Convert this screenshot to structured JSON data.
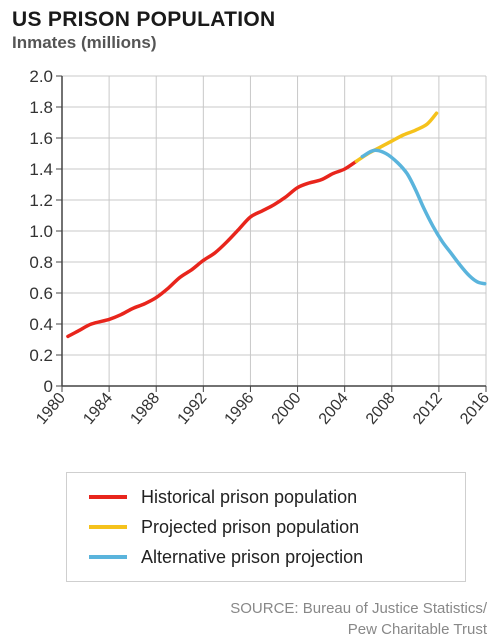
{
  "header": {
    "title": "US PRISON POPULATION",
    "subtitle": "Inmates (millions)"
  },
  "colors": {
    "historical": "#e8251c",
    "projected": "#f5c21c",
    "alternative": "#5ab4dc",
    "grid": "#c8c8c8",
    "axis": "#444444"
  },
  "chart_data": {
    "type": "line",
    "title": "US PRISON POPULATION",
    "ylabel": "Inmates (millions)",
    "xlim": [
      1980,
      2016
    ],
    "ylim": [
      0,
      2.0
    ],
    "x_ticks": [
      1980,
      1984,
      1988,
      1992,
      1996,
      2000,
      2004,
      2008,
      2012,
      2016
    ],
    "y_ticks": [
      "0",
      "0.2",
      "0.4",
      "0.6",
      "0.8",
      "1.0",
      "1.2",
      "1.4",
      "1.6",
      "1.8",
      "2.0"
    ],
    "grid": true,
    "legend_position": "bottom",
    "series": [
      {
        "name": "Historical prison population",
        "color": "#e8251c",
        "points": [
          [
            1980.5,
            0.32
          ],
          [
            1981.5,
            0.36
          ],
          [
            1982.5,
            0.4
          ],
          [
            1984,
            0.43
          ],
          [
            1985,
            0.46
          ],
          [
            1986,
            0.5
          ],
          [
            1987,
            0.53
          ],
          [
            1988,
            0.57
          ],
          [
            1989,
            0.63
          ],
          [
            1990,
            0.7
          ],
          [
            1991,
            0.75
          ],
          [
            1992,
            0.81
          ],
          [
            1993,
            0.86
          ],
          [
            1994,
            0.93
          ],
          [
            1995,
            1.01
          ],
          [
            1996,
            1.09
          ],
          [
            1997,
            1.13
          ],
          [
            1998,
            1.17
          ],
          [
            1999,
            1.22
          ],
          [
            2000,
            1.28
          ],
          [
            2001,
            1.31
          ],
          [
            2002,
            1.33
          ],
          [
            2003,
            1.37
          ],
          [
            2004,
            1.4
          ],
          [
            2005,
            1.45
          ]
        ]
      },
      {
        "name": "Projected prison population",
        "color": "#f5c21c",
        "points": [
          [
            2005,
            1.45
          ],
          [
            2006,
            1.5
          ],
          [
            2007,
            1.54
          ],
          [
            2008,
            1.58
          ],
          [
            2009,
            1.62
          ],
          [
            2010,
            1.65
          ],
          [
            2011,
            1.69
          ],
          [
            2011.8,
            1.76
          ]
        ]
      },
      {
        "name": "Alternative prison projection",
        "color": "#5ab4dc",
        "points": [
          [
            2005.5,
            1.48
          ],
          [
            2006.5,
            1.52
          ],
          [
            2007.5,
            1.5
          ],
          [
            2008.5,
            1.44
          ],
          [
            2009.3,
            1.37
          ],
          [
            2010,
            1.27
          ],
          [
            2010.7,
            1.15
          ],
          [
            2011.5,
            1.03
          ],
          [
            2012.3,
            0.93
          ],
          [
            2013,
            0.86
          ],
          [
            2013.8,
            0.78
          ],
          [
            2014.6,
            0.71
          ],
          [
            2015.3,
            0.67
          ],
          [
            2015.9,
            0.66
          ]
        ]
      }
    ]
  },
  "legend": {
    "items": [
      {
        "label": "Historical prison population",
        "color": "#e8251c"
      },
      {
        "label": "Projected prison population",
        "color": "#f5c21c"
      },
      {
        "label": "Alternative prison projection",
        "color": "#5ab4dc"
      }
    ]
  },
  "source": {
    "line1": "SOURCE: Bureau of Justice Statistics/",
    "line2": "Pew Charitable Trust"
  }
}
